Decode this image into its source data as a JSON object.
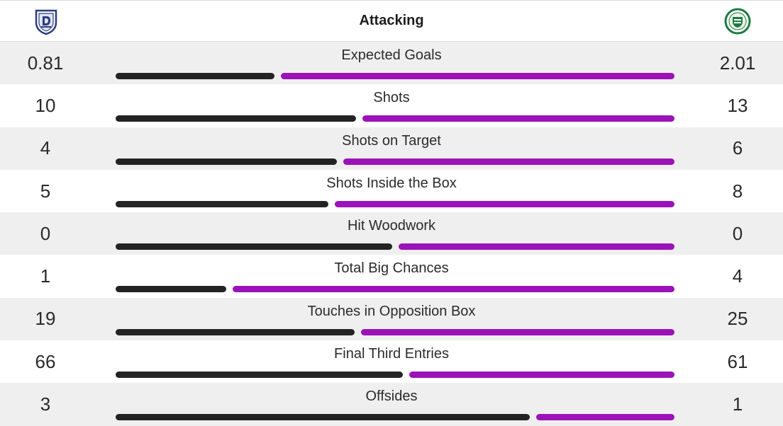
{
  "header": {
    "title": "Attacking",
    "home_crest": "dundee-crest-icon",
    "away_crest": "hibernian-crest-icon"
  },
  "colors": {
    "home": "#232323",
    "away": "#9b12b8"
  },
  "stats": [
    {
      "label": "Expected Goals",
      "home": "0.81",
      "away": "2.01",
      "home_share": 0.287
    },
    {
      "label": "Shots",
      "home": "10",
      "away": "13",
      "home_share": 0.435
    },
    {
      "label": "Shots on Target",
      "home": "4",
      "away": "6",
      "home_share": 0.4
    },
    {
      "label": "Shots Inside the Box",
      "home": "5",
      "away": "8",
      "home_share": 0.385
    },
    {
      "label": "Hit Woodwork",
      "home": "0",
      "away": "0",
      "home_share": 0.5
    },
    {
      "label": "Total Big Chances",
      "home": "1",
      "away": "4",
      "home_share": 0.2
    },
    {
      "label": "Touches in Opposition Box",
      "home": "19",
      "away": "25",
      "home_share": 0.432
    },
    {
      "label": "Final Third Entries",
      "home": "66",
      "away": "61",
      "home_share": 0.52
    },
    {
      "label": "Offsides",
      "home": "3",
      "away": "1",
      "home_share": 0.75
    }
  ]
}
